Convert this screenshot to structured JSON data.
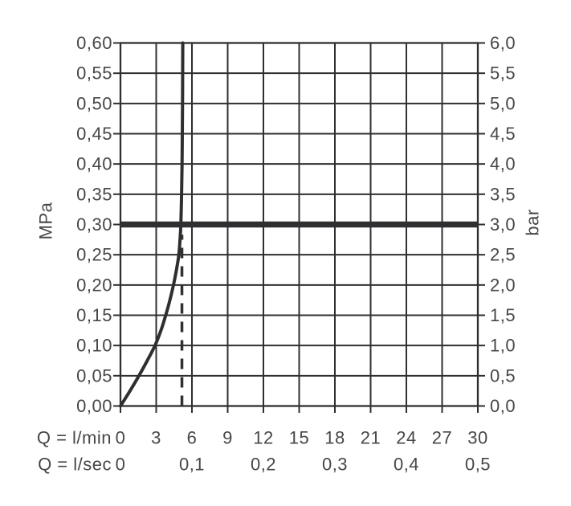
{
  "chart_data": {
    "type": "line",
    "grid": true,
    "legend": false,
    "y_axis_left": {
      "label": "MPa",
      "min": 0,
      "max": 0.6,
      "values": [
        0,
        0.05,
        0.1,
        0.15,
        0.2,
        0.25,
        0.3,
        0.35,
        0.4,
        0.45,
        0.5,
        0.55,
        0.6
      ],
      "labels": [
        "0,00",
        "0,05",
        "0,10",
        "0,15",
        "0,20",
        "0,25",
        "0,30",
        "0,35",
        "0,40",
        "0,45",
        "0,50",
        "0,55",
        "0,60"
      ]
    },
    "y_axis_right": {
      "label": "bar",
      "min": 0,
      "max": 6,
      "labels": [
        "0,0",
        "0,5",
        "1,0",
        "1,5",
        "2,0",
        "2,5",
        "3,0",
        "3,5",
        "4,0",
        "4,5",
        "5,0",
        "5,5",
        "6,0"
      ]
    },
    "x_axis_lmin": {
      "label": "Q = l/min",
      "min": 0,
      "max": 30,
      "values": [
        0,
        3,
        6,
        9,
        12,
        15,
        18,
        21,
        24,
        27,
        30
      ],
      "labels": [
        "0",
        "3",
        "6",
        "9",
        "12",
        "15",
        "18",
        "21",
        "24",
        "27",
        "30"
      ]
    },
    "x_axis_lsec": {
      "label": "Q = l/sec",
      "values": [
        0,
        6,
        12,
        18,
        24,
        30
      ],
      "labels": [
        "0",
        "0,1",
        "0,2",
        "0,3",
        "0,4",
        "0,5"
      ]
    },
    "series": [
      {
        "name": "flow-curve",
        "points_lmin_mpa": [
          [
            0,
            0
          ],
          [
            0.8,
            0.025
          ],
          [
            1.55,
            0.05
          ],
          [
            2.25,
            0.075
          ],
          [
            2.9,
            0.1
          ],
          [
            3.4,
            0.125
          ],
          [
            3.8,
            0.15
          ],
          [
            4.15,
            0.175
          ],
          [
            4.45,
            0.2
          ],
          [
            4.7,
            0.225
          ],
          [
            4.9,
            0.25
          ],
          [
            5.0,
            0.275
          ],
          [
            5.07,
            0.3
          ],
          [
            5.13,
            0.35
          ],
          [
            5.17,
            0.4
          ],
          [
            5.19,
            0.45
          ],
          [
            5.21,
            0.5
          ],
          [
            5.22,
            0.55
          ],
          [
            5.23,
            0.6
          ]
        ]
      }
    ],
    "reference_line": {
      "mpa": 0.3,
      "bar": 3.0
    },
    "dashed_guide": {
      "lmin": 5.16,
      "from_mpa": 0,
      "to_mpa": 0.283
    }
  },
  "style": {
    "background": "#ffffff",
    "grid_color": "#2e2f31",
    "curve_color": "#2e2f31",
    "reference_color": "#2e2f31",
    "text_color": "#474747"
  }
}
